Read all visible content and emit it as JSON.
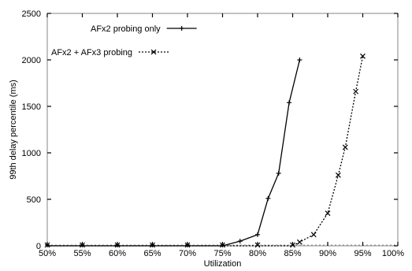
{
  "chart_data": {
    "type": "line",
    "xlabel": "Utilization",
    "ylabel": "99th delay percentile (ms)",
    "xlim": [
      50,
      100
    ],
    "ylim": [
      0,
      2500
    ],
    "x_ticks": [
      50,
      55,
      60,
      65,
      70,
      75,
      80,
      85,
      90,
      95,
      100
    ],
    "x_tick_labels": [
      "50%",
      "55%",
      "60%",
      "65%",
      "70%",
      "75%",
      "80%",
      "85%",
      "90%",
      "95%",
      "100%"
    ],
    "y_ticks": [
      0,
      500,
      1000,
      1500,
      2000,
      2500
    ],
    "y_tick_labels": [
      "0",
      "500",
      "1000",
      "1500",
      "2000",
      "2500"
    ],
    "legend_position": "top-left",
    "series": [
      {
        "name": "AFx2 probing only",
        "marker": "plus",
        "style": "solid",
        "points": [
          [
            50,
            0
          ],
          [
            55,
            0
          ],
          [
            60,
            0
          ],
          [
            65,
            0
          ],
          [
            70,
            0
          ],
          [
            75,
            0
          ],
          [
            77.5,
            50
          ],
          [
            80,
            120
          ],
          [
            81.5,
            510
          ],
          [
            83,
            780
          ],
          [
            84.5,
            1540
          ],
          [
            86,
            2000
          ]
        ]
      },
      {
        "name": "AFx2 + AFx3 probing",
        "marker": "x",
        "style": "dotted",
        "points": [
          [
            50,
            0
          ],
          [
            55,
            0
          ],
          [
            60,
            0
          ],
          [
            65,
            0
          ],
          [
            70,
            0
          ],
          [
            75,
            0
          ],
          [
            80,
            0
          ],
          [
            85,
            0
          ],
          [
            86,
            40
          ],
          [
            88,
            120
          ],
          [
            90,
            350
          ],
          [
            91.5,
            760
          ],
          [
            92.5,
            1060
          ],
          [
            94,
            1660
          ],
          [
            95,
            2040
          ]
        ]
      }
    ]
  }
}
